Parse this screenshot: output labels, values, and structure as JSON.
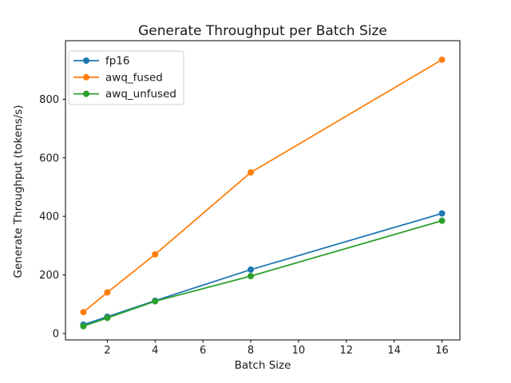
{
  "chart_data": {
    "type": "line",
    "title": "Generate Throughput per Batch Size",
    "xlabel": "Batch Size",
    "ylabel": "Generate Throughput (tokens/s)",
    "x": [
      1,
      2,
      4,
      8,
      16
    ],
    "series": [
      {
        "name": "fp16",
        "color": "#1f77b4",
        "values": [
          30,
          57,
          112,
          218,
          410
        ]
      },
      {
        "name": "awq_fused",
        "color": "#ff7f0e",
        "values": [
          73,
          140,
          270,
          550,
          935
        ]
      },
      {
        "name": "awq_unfused",
        "color": "#2ca02c",
        "values": [
          25,
          53,
          110,
          196,
          385
        ]
      }
    ],
    "xticks": [
      2,
      4,
      6,
      8,
      10,
      12,
      14,
      16
    ],
    "yticks": [
      0,
      200,
      400,
      600,
      800
    ],
    "xlim": [
      0.25,
      16.75
    ],
    "ylim": [
      -22,
      1000
    ],
    "legend_position": "upper left",
    "legend_entries": [
      "fp16",
      "awq_fused",
      "awq_unfused"
    ],
    "grid": false,
    "marker": "o",
    "background_color": "#ffffff",
    "spine_color": "#000000",
    "legend_border_color": "#cccccc"
  }
}
